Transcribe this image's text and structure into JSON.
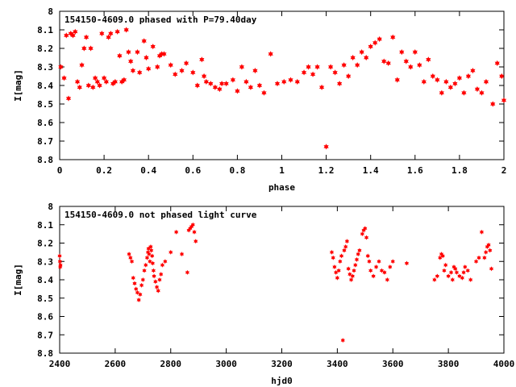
{
  "colors": {
    "points": "#ff0000",
    "axes": "#000000",
    "background": "#ffffff"
  },
  "chart_data": [
    {
      "type": "scatter",
      "title": "154150-4609.0 phased with P=79.40day",
      "title_placement": "top-left inside",
      "xlabel": "phase",
      "ylabel": "I[mag]",
      "xlim": [
        0,
        2
      ],
      "ylim": [
        8,
        8.8
      ],
      "y_inverted": true,
      "grid": false,
      "marker": "star",
      "xticks": [
        "0",
        "0.2",
        "0.4",
        "0.6",
        "0.8",
        "1",
        "1.2",
        "1.4",
        "1.6",
        "1.8",
        "2"
      ],
      "yticks": [
        "8",
        "8.1",
        "8.2",
        "8.3",
        "8.4",
        "8.5",
        "8.6",
        "8.7",
        "8.8"
      ],
      "series": [
        {
          "x": [
            0.005,
            0.02,
            0.03,
            0.04,
            0.05,
            0.06,
            0.07,
            0.08,
            0.09,
            0.1,
            0.11,
            0.12,
            0.13,
            0.14,
            0.15,
            0.16,
            0.17,
            0.18,
            0.19,
            0.2,
            0.21,
            0.22,
            0.23,
            0.24,
            0.25,
            0.26,
            0.27,
            0.28,
            0.29,
            0.3,
            0.31,
            0.32,
            0.33,
            0.35,
            0.36,
            0.38,
            0.39,
            0.4,
            0.42,
            0.44,
            0.45,
            0.46,
            0.47,
            0.5,
            0.52,
            0.55,
            0.57,
            0.6,
            0.62,
            0.64,
            0.65,
            0.66,
            0.68,
            0.7,
            0.72,
            0.73,
            0.75,
            0.78,
            0.8,
            0.82,
            0.84,
            0.86,
            0.88,
            0.9,
            0.92,
            0.95,
            0.98,
            1.01,
            1.04,
            1.07,
            1.1,
            1.12,
            1.14,
            1.16,
            1.18,
            1.2,
            1.22,
            1.24,
            1.26,
            1.28,
            1.3,
            1.32,
            1.34,
            1.36,
            1.38,
            1.4,
            1.42,
            1.44,
            1.46,
            1.48,
            1.5,
            1.52,
            1.54,
            1.56,
            1.58,
            1.6,
            1.62,
            1.64,
            1.66,
            1.68,
            1.7,
            1.72,
            1.74,
            1.76,
            1.78,
            1.8,
            1.82,
            1.84,
            1.86,
            1.88,
            1.9,
            1.92,
            1.95,
            1.97,
            1.99,
            2.0
          ],
          "y": [
            8.3,
            8.36,
            8.13,
            8.47,
            8.12,
            8.13,
            8.11,
            8.38,
            8.41,
            8.29,
            8.2,
            8.14,
            8.4,
            8.2,
            8.41,
            8.36,
            8.38,
            8.4,
            8.12,
            8.36,
            8.38,
            8.14,
            8.12,
            8.39,
            8.38,
            8.11,
            8.24,
            8.38,
            8.37,
            8.1,
            8.22,
            8.27,
            8.32,
            8.22,
            8.33,
            8.16,
            8.25,
            8.31,
            8.19,
            8.3,
            8.24,
            8.23,
            8.23,
            8.29,
            8.34,
            8.32,
            8.28,
            8.33,
            8.4,
            8.26,
            8.35,
            8.38,
            8.39,
            8.41,
            8.42,
            8.39,
            8.39,
            8.37,
            8.43,
            8.3,
            8.38,
            8.41,
            8.32,
            8.4,
            8.44,
            8.23,
            8.39,
            8.38,
            8.37,
            8.38,
            8.33,
            8.3,
            8.34,
            8.3,
            8.41,
            8.73,
            8.3,
            8.33,
            8.39,
            8.29,
            8.35,
            8.25,
            8.29,
            8.22,
            8.25,
            8.19,
            8.17,
            8.15,
            8.27,
            8.28,
            8.14,
            8.37,
            8.22,
            8.27,
            8.3,
            8.22,
            8.29,
            8.38,
            8.26,
            8.35,
            8.37,
            8.44,
            8.38,
            8.41,
            8.39,
            8.36,
            8.44,
            8.35,
            8.32,
            8.42,
            8.44,
            8.38,
            8.5,
            8.28,
            8.35,
            8.48
          ]
        }
      ]
    },
    {
      "type": "scatter",
      "title": "154150-4609.0 not phased light curve",
      "title_placement": "top-left inside",
      "xlabel": "hjd0",
      "ylabel": "I[mag]",
      "xlim": [
        2400,
        4000
      ],
      "ylim": [
        8,
        8.8
      ],
      "y_inverted": true,
      "grid": false,
      "marker": "star",
      "xticks": [
        "2400",
        "2600",
        "2800",
        "3000",
        "3200",
        "3400",
        "3600",
        "3800",
        "4000"
      ],
      "yticks": [
        "8",
        "8.1",
        "8.2",
        "8.3",
        "8.4",
        "8.5",
        "8.6",
        "8.7",
        "8.8"
      ],
      "series": [
        {
          "x": [
            2400,
            2401,
            2402,
            2403,
            2650,
            2655,
            2660,
            2665,
            2670,
            2675,
            2680,
            2685,
            2690,
            2695,
            2700,
            2705,
            2710,
            2715,
            2718,
            2720,
            2722,
            2725,
            2728,
            2730,
            2733,
            2735,
            2738,
            2740,
            2745,
            2750,
            2755,
            2760,
            2765,
            2770,
            2780,
            2800,
            2820,
            2840,
            2860,
            2865,
            2870,
            2875,
            2880,
            2885,
            2890,
            3380,
            3385,
            3390,
            3395,
            3400,
            3405,
            3410,
            3415,
            3420,
            3425,
            3430,
            3435,
            3440,
            3445,
            3450,
            3455,
            3460,
            3465,
            3470,
            3475,
            3480,
            3490,
            3495,
            3500,
            3505,
            3510,
            3515,
            3520,
            3530,
            3540,
            3550,
            3560,
            3570,
            3580,
            3590,
            3600,
            3650,
            3750,
            3760,
            3770,
            3775,
            3780,
            3785,
            3790,
            3800,
            3810,
            3815,
            3820,
            3825,
            3830,
            3840,
            3850,
            3855,
            3860,
            3870,
            3880,
            3900,
            3910,
            3920,
            3930,
            3935,
            3940,
            3945,
            3950,
            3955
          ],
          "y": [
            8.27,
            8.3,
            8.33,
            8.32,
            8.26,
            8.28,
            8.3,
            8.39,
            8.42,
            8.45,
            8.47,
            8.51,
            8.48,
            8.43,
            8.4,
            8.35,
            8.32,
            8.28,
            8.25,
            8.23,
            8.26,
            8.3,
            8.22,
            8.24,
            8.27,
            8.31,
            8.35,
            8.38,
            8.41,
            8.44,
            8.46,
            8.4,
            8.37,
            8.32,
            8.3,
            8.25,
            8.14,
            8.26,
            8.36,
            8.13,
            8.12,
            8.11,
            8.1,
            8.14,
            8.19,
            8.25,
            8.28,
            8.33,
            8.36,
            8.39,
            8.35,
            8.3,
            8.27,
            8.73,
            8.24,
            8.22,
            8.19,
            8.34,
            8.37,
            8.4,
            8.38,
            8.35,
            8.32,
            8.29,
            8.26,
            8.24,
            8.15,
            8.13,
            8.12,
            8.17,
            8.27,
            8.3,
            8.35,
            8.38,
            8.33,
            8.3,
            8.35,
            8.36,
            8.4,
            8.33,
            8.3,
            8.31,
            8.4,
            8.38,
            8.28,
            8.26,
            8.27,
            8.35,
            8.32,
            8.38,
            8.36,
            8.4,
            8.33,
            8.34,
            8.36,
            8.38,
            8.39,
            8.36,
            8.33,
            8.35,
            8.4,
            8.3,
            8.28,
            8.14,
            8.28,
            8.25,
            8.22,
            8.21,
            8.24,
            8.34
          ]
        }
      ]
    }
  ]
}
